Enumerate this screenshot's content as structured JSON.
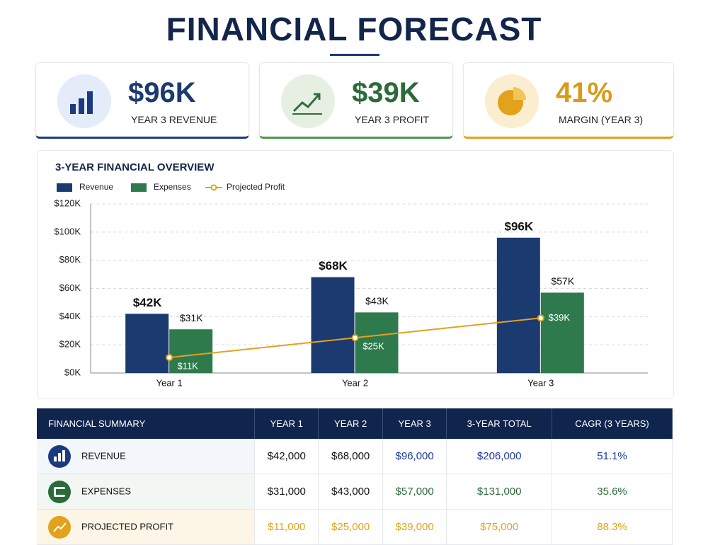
{
  "header": {
    "title": "FINANCIAL FORECAST"
  },
  "kpis": [
    {
      "value": "$96K",
      "label": "YEAR 3 REVENUE"
    },
    {
      "value": "$39K",
      "label": "YEAR 3 PROFIT"
    },
    {
      "value": "41%",
      "label": "MARGIN (YEAR 3)"
    }
  ],
  "chart_data": {
    "type": "bar",
    "title": "3-YEAR FINANCIAL OVERVIEW",
    "categories": [
      "Year 1",
      "Year 2",
      "Year 3"
    ],
    "series": [
      {
        "name": "Revenue",
        "color": "#1b3a70",
        "values": [
          42000,
          68000,
          96000
        ],
        "value_labels": [
          "$42K",
          "$68K",
          "$96K"
        ]
      },
      {
        "name": "Expenses",
        "color": "#2f7a4c",
        "values": [
          31000,
          43000,
          57000
        ],
        "value_labels": [
          "$31K",
          "$43K",
          "$57K"
        ]
      },
      {
        "name": "Projected Profit",
        "type": "line",
        "color": "#e2a21b",
        "values": [
          11000,
          25000,
          39000
        ],
        "value_labels": [
          "$11K",
          "$25K",
          "$39K"
        ]
      }
    ],
    "ylim": [
      0,
      120000
    ],
    "yticks": [
      {
        "value": 0,
        "label": "$0K"
      },
      {
        "value": 20000,
        "label": "$20K"
      },
      {
        "value": 40000,
        "label": "$40K"
      },
      {
        "value": 60000,
        "label": "$60K"
      },
      {
        "value": 80000,
        "label": "$80K"
      },
      {
        "value": 100000,
        "label": "$100K"
      },
      {
        "value": 120000,
        "label": "$120K"
      }
    ],
    "grid": true
  },
  "table": {
    "headers": [
      "FINANCIAL SUMMARY",
      "YEAR 1",
      "YEAR 2",
      "YEAR 3",
      "3-YEAR TOTAL",
      "CAGR (3 YEARS)"
    ],
    "rows": [
      [
        "REVENUE",
        "$42,000",
        "$68,000",
        "$96,000",
        "$206,000",
        "51.1%"
      ],
      [
        "EXPENSES",
        "$31,000",
        "$43,000",
        "$57,000",
        "$131,000",
        "35.6%"
      ],
      [
        "PROJECTED PROFIT",
        "$11,000",
        "$25,000",
        "$39,000",
        "$75,000",
        "88.3%"
      ]
    ]
  }
}
